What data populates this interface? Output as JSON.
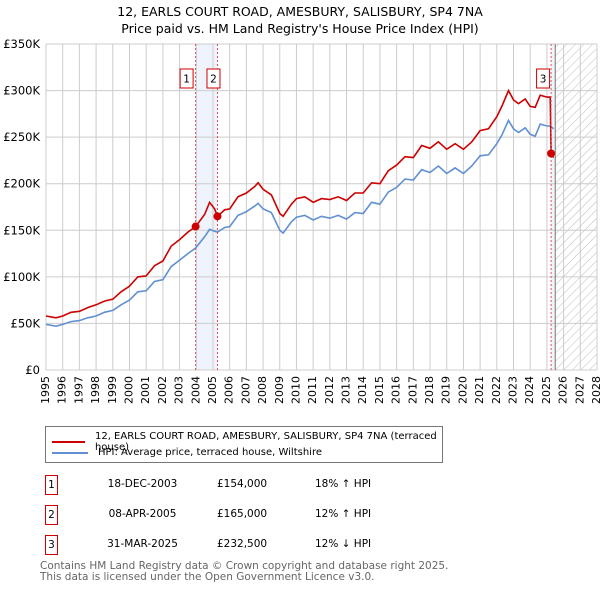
{
  "title": "12, EARLS COURT ROAD, AMESBURY, SALISBURY, SP4 7NA",
  "subtitle": "Price paid vs. HM Land Registry's House Price Index (HPI)",
  "chart_data": {
    "type": "line",
    "xlim": [
      1995,
      2028
    ],
    "ylim": [
      0,
      350000
    ],
    "x_ticks": [
      "1995",
      "1996",
      "1997",
      "1998",
      "1999",
      "2000",
      "2001",
      "2002",
      "2003",
      "2004",
      "2005",
      "2006",
      "2007",
      "2008",
      "2009",
      "2010",
      "2011",
      "2012",
      "2013",
      "2014",
      "2015",
      "2016",
      "2017",
      "2018",
      "2019",
      "2020",
      "2021",
      "2022",
      "2023",
      "2024",
      "2025",
      "2026",
      "2027",
      "2028"
    ],
    "y_ticks": [
      {
        "v": 0,
        "label": "£0"
      },
      {
        "v": 50000,
        "label": "£50K"
      },
      {
        "v": 100000,
        "label": "£100K"
      },
      {
        "v": 150000,
        "label": "£150K"
      },
      {
        "v": 200000,
        "label": "£200K"
      },
      {
        "v": 250000,
        "label": "£250K"
      },
      {
        "v": 300000,
        "label": "£300K"
      },
      {
        "v": 350000,
        "label": "£350K"
      }
    ],
    "forecast_start": 2025.5,
    "series": [
      {
        "name": "12, EARLS COURT ROAD, AMESBURY, SALISBURY, SP4 7NA (terraced house)",
        "color": "#cc0000",
        "x": [
          1995,
          1995.6,
          1996,
          1996.5,
          1997,
          1997.5,
          1998,
          1998.5,
          1999,
          1999.5,
          2000,
          2000.5,
          2001,
          2001.5,
          2002,
          2002.5,
          2003,
          2003.5,
          2003.96,
          2004.5,
          2004.8,
          2005.1,
          2005.27,
          2005.7,
          2006,
          2006.5,
          2007,
          2007.5,
          2007.7,
          2008,
          2008.5,
          2009,
          2009.2,
          2009.7,
          2010,
          2010.5,
          2011,
          2011.5,
          2012,
          2012.5,
          2013,
          2013.5,
          2014,
          2014.5,
          2015,
          2015.5,
          2016,
          2016.5,
          2017,
          2017.5,
          2018,
          2018.5,
          2019,
          2019.5,
          2020,
          2020.5,
          2021,
          2021.5,
          2022,
          2022.3,
          2022.7,
          2023,
          2023.3,
          2023.7,
          2024,
          2024.3,
          2024.6,
          2025,
          2025.2,
          2025.25,
          2025.4
        ],
        "y": [
          58000,
          56000,
          58000,
          62000,
          63000,
          67000,
          70000,
          74000,
          76000,
          84000,
          90000,
          100000,
          101000,
          112000,
          117000,
          133000,
          140000,
          148000,
          154000,
          167000,
          180000,
          173000,
          165000,
          172000,
          173000,
          186000,
          190000,
          197000,
          201000,
          194000,
          188000,
          168000,
          165000,
          178000,
          184000,
          186000,
          180000,
          184000,
          183000,
          186000,
          182000,
          190000,
          190000,
          201000,
          200000,
          214000,
          220000,
          229000,
          228000,
          241000,
          238000,
          245000,
          237000,
          243000,
          237000,
          245000,
          257000,
          259000,
          272000,
          283000,
          300000,
          290000,
          286000,
          291000,
          283000,
          282000,
          295000,
          293000,
          293000,
          232500,
          228000
        ]
      },
      {
        "name": "HPI: Average price, terraced house, Wiltshire",
        "color": "#6090d0",
        "x": [
          1995,
          1995.6,
          1996,
          1996.5,
          1997,
          1997.5,
          1998,
          1998.5,
          1999,
          1999.5,
          2000,
          2000.5,
          2001,
          2001.5,
          2002,
          2002.5,
          2003,
          2003.5,
          2003.96,
          2004.5,
          2004.8,
          2005.1,
          2005.27,
          2005.7,
          2006,
          2006.5,
          2007,
          2007.5,
          2007.7,
          2008,
          2008.5,
          2009,
          2009.2,
          2009.7,
          2010,
          2010.5,
          2011,
          2011.5,
          2012,
          2012.5,
          2013,
          2013.5,
          2014,
          2014.5,
          2015,
          2015.5,
          2016,
          2016.5,
          2017,
          2017.5,
          2018,
          2018.5,
          2019,
          2019.5,
          2020,
          2020.5,
          2021,
          2021.5,
          2022,
          2022.3,
          2022.7,
          2023,
          2023.3,
          2023.7,
          2024,
          2024.3,
          2024.6,
          2025,
          2025.2,
          2025.25,
          2025.4
        ],
        "y": [
          49000,
          47000,
          49000,
          52000,
          53000,
          56000,
          58000,
          62000,
          64000,
          70000,
          75000,
          84000,
          85000,
          95000,
          97000,
          111000,
          118000,
          125000,
          131000,
          143000,
          151000,
          149000,
          148000,
          153000,
          154000,
          166000,
          170000,
          176000,
          179000,
          173000,
          169000,
          150000,
          147000,
          159000,
          164000,
          166000,
          161000,
          165000,
          163000,
          166000,
          162000,
          169000,
          168000,
          180000,
          178000,
          191000,
          196000,
          205000,
          204000,
          215000,
          212000,
          219000,
          211000,
          217000,
          211000,
          219000,
          230000,
          231000,
          243000,
          252000,
          268000,
          259000,
          255000,
          260000,
          253000,
          251000,
          264000,
          262000,
          262000,
          261000,
          259000
        ]
      }
    ],
    "sales": [
      {
        "label": "1",
        "x": 2003.96,
        "y": 154000
      },
      {
        "label": "2",
        "x": 2005.27,
        "y": 165000
      },
      {
        "label": "3",
        "x": 2025.25,
        "y": 232500
      }
    ]
  },
  "legend": {
    "property": "12, EARLS COURT ROAD, AMESBURY, SALISBURY, SP4 7NA (terraced house)",
    "hpi": "HPI: Average price, terraced house, Wiltshire"
  },
  "transactions": [
    {
      "num": "1",
      "date": "18-DEC-2003",
      "price": "£154,000",
      "hpi": "18% ↑ HPI"
    },
    {
      "num": "2",
      "date": "08-APR-2005",
      "price": "£165,000",
      "hpi": "12% ↑ HPI"
    },
    {
      "num": "3",
      "date": "31-MAR-2025",
      "price": "£232,500",
      "hpi": "12% ↓ HPI"
    }
  ],
  "footer": {
    "line1": "Contains HM Land Registry data © Crown copyright and database right 2025.",
    "line2": "This data is licensed under the Open Government Licence v3.0."
  }
}
